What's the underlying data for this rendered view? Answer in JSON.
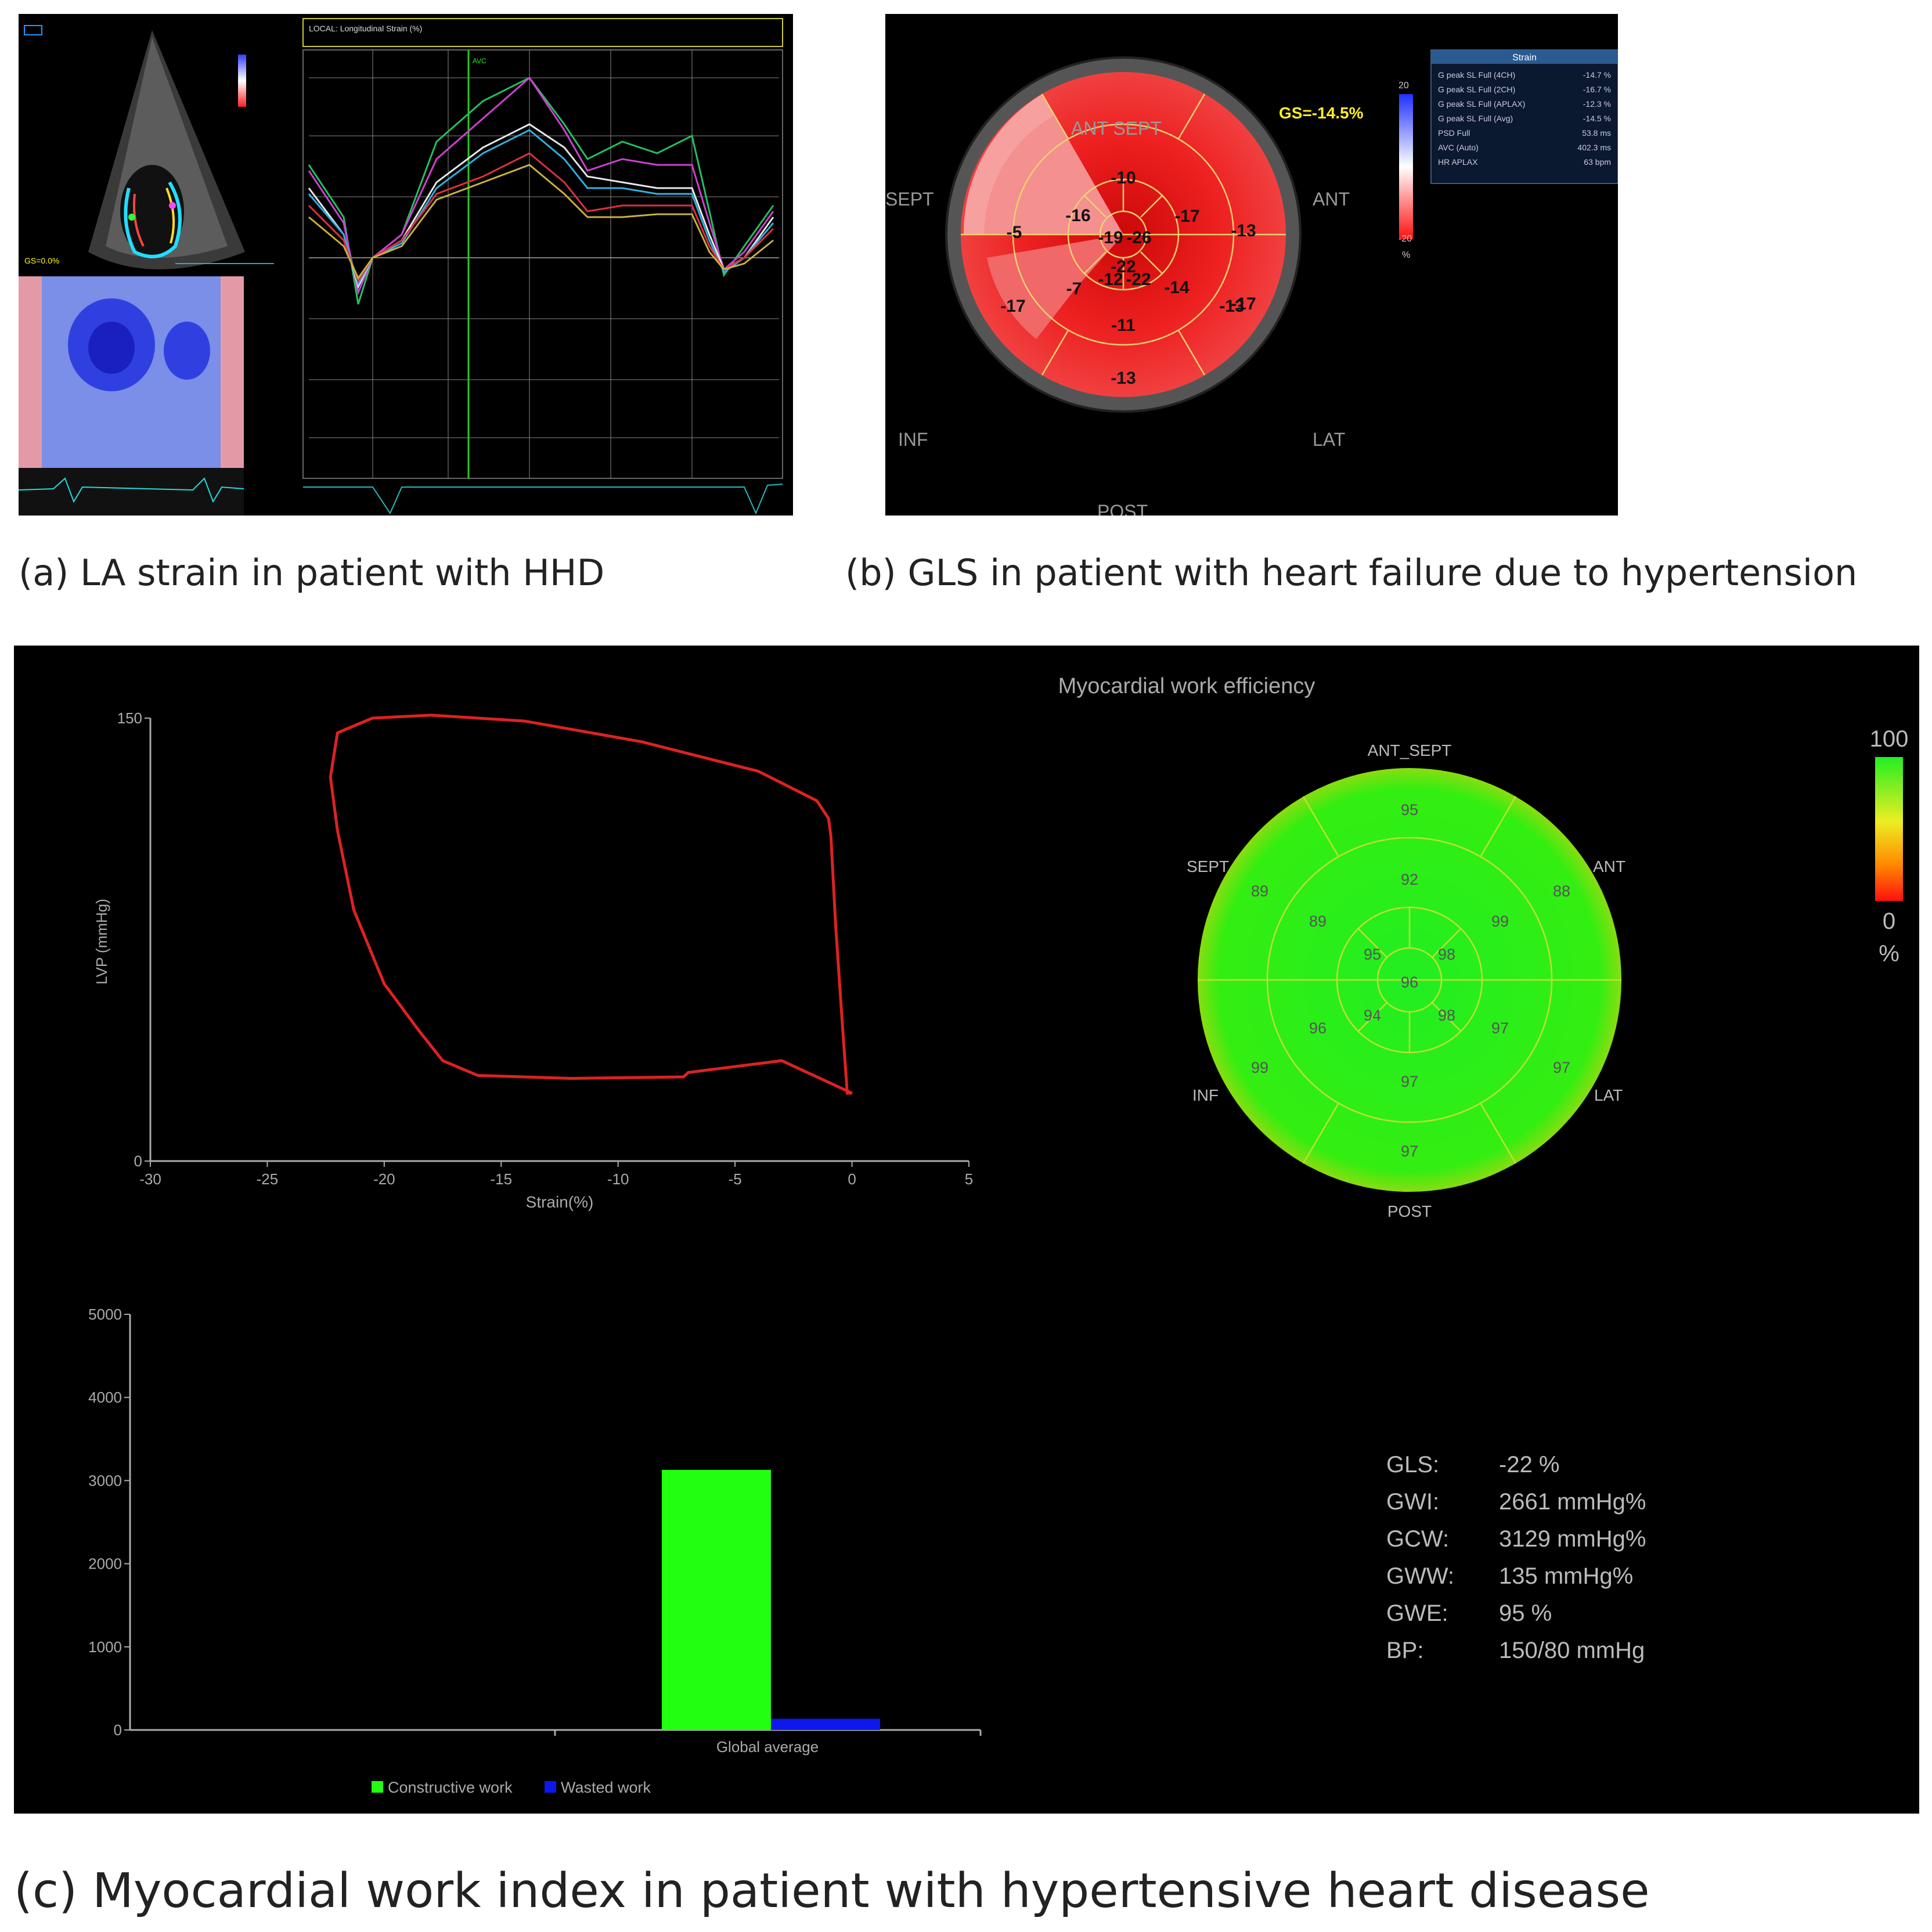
{
  "panel_a": {
    "caption": "(a) LA strain in patient with HHD",
    "graph_header": "LOCAL: Longitudinal Strain (%)",
    "avc_label": "AVC",
    "gs_label": "GS=0.0%"
  },
  "panel_b": {
    "caption": "(b) GLS in patient with heart failure due to hypertension",
    "gs_value": "GS=-14.5%",
    "wall_labels": {
      "ant_sept": "ANT SEPT",
      "ant": "ANT",
      "sept": "SEPT",
      "inf": "INF",
      "lat": "LAT",
      "post": "POST"
    },
    "colorbar": {
      "top": "20",
      "bottom": "-20",
      "unit": "%"
    },
    "segments": [
      "-10",
      "-5",
      "-17",
      "-13",
      "-16",
      "-17",
      "-19",
      "-26",
      "-22",
      "-7",
      "-12",
      "-22",
      "-14",
      "-17",
      "-11",
      "-13",
      "-13"
    ],
    "table": {
      "header": "Strain",
      "rows": [
        {
          "label": "G peak SL Full (4CH)",
          "value": "-14.7 %"
        },
        {
          "label": "G peak SL Full (2CH)",
          "value": "-16.7 %"
        },
        {
          "label": "G peak SL Full (APLAX)",
          "value": "-12.3 %"
        },
        {
          "label": "G peak SL Full (Avg)",
          "value": "-14.5 %"
        },
        {
          "label": "PSD Full",
          "value": "53.8 ms"
        },
        {
          "label": "AVC (Auto)",
          "value": "402.3 ms"
        },
        {
          "label": "HR APLAX",
          "value": "63 bpm"
        }
      ]
    },
    "colors": {
      "bullseye_red": "#ee2020",
      "ring_gray": "#555555",
      "gs_yellow": "#ffee22"
    }
  },
  "panel_c": {
    "caption": "(c)  Myocardial work index in patient with hypertensive heart disease",
    "loop_chart": {
      "type": "line",
      "xlabel": "Strain(%)",
      "ylabel": "LVP (mmHg)",
      "xlim": [
        -30,
        5
      ],
      "ylim": [
        0,
        150
      ],
      "x_ticks": [
        "-30",
        "-25",
        "-20",
        "-15",
        "-10",
        "-5",
        "0",
        "5"
      ],
      "y_ticks": [
        "0",
        "150"
      ],
      "loop_points": [
        [
          -0.2,
          23
        ],
        [
          -0.4,
          45
        ],
        [
          -0.7,
          80
        ],
        [
          -0.9,
          110
        ],
        [
          -1,
          116
        ],
        [
          -1.5,
          122
        ],
        [
          -4,
          132
        ],
        [
          -9,
          142
        ],
        [
          -14,
          149
        ],
        [
          -18,
          151
        ],
        [
          -20.5,
          150
        ],
        [
          -22,
          145
        ],
        [
          -22.3,
          130
        ],
        [
          -22,
          112
        ],
        [
          -21.3,
          85
        ],
        [
          -20,
          60
        ],
        [
          -18.5,
          44
        ],
        [
          -17.5,
          34
        ],
        [
          -16,
          29
        ],
        [
          -12,
          28
        ],
        [
          -7.2,
          28.5
        ],
        [
          -7,
          30
        ],
        [
          -3,
          34
        ],
        [
          0,
          23
        ],
        [
          -0.2,
          23
        ]
      ],
      "color": "#dd2222"
    },
    "bullseye": {
      "title": "Myocardial work efficiency",
      "wall_labels": {
        "ant_sept": "ANT_SEPT",
        "ant": "ANT",
        "sept": "SEPT",
        "inf": "INF",
        "lat": "LAT",
        "post": "POST"
      },
      "segments": [
        "95",
        "89",
        "88",
        "92",
        "89",
        "99",
        "95",
        "98",
        "96",
        "94",
        "98",
        "96",
        "97",
        "99",
        "97",
        "97",
        "97"
      ],
      "colorbar": {
        "top": "100",
        "bottom": "0",
        "unit": "%"
      },
      "color": "#33ee11"
    },
    "bar_chart": {
      "type": "bar",
      "categories": [
        "Global average"
      ],
      "series": [
        {
          "name": "Constructive work",
          "values": [
            3129
          ],
          "color": "#22ff11"
        },
        {
          "name": "Wasted work",
          "values": [
            135
          ],
          "color": "#0c18ee"
        }
      ],
      "y_ticks": [
        "0",
        "1000",
        "2000",
        "3000",
        "4000",
        "5000"
      ],
      "ylim": [
        0,
        5000
      ],
      "legend_position": "bottom"
    },
    "stats": [
      {
        "label": "GLS:",
        "value": "-22 %"
      },
      {
        "label": "GWI:",
        "value": "2661 mmHg%"
      },
      {
        "label": "GCW:",
        "value": "3129 mmHg%"
      },
      {
        "label": "GWW:",
        "value": "135 mmHg%"
      },
      {
        "label": "GWE:",
        "value": "95 %"
      },
      {
        "label": "BP:",
        "value": "150/80 mmHg"
      }
    ]
  }
}
